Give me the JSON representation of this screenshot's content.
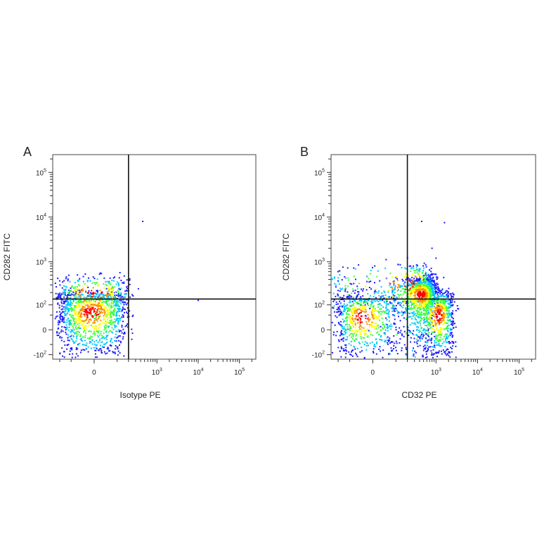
{
  "chart_data": [
    {
      "type": "scatter",
      "panel_label": "A",
      "xlabel": "Isotype PE",
      "ylabel": "CD282 FITC",
      "scale": "biexponential",
      "x_ticks": [
        {
          "value": 0,
          "label": "0"
        },
        {
          "value": 1000,
          "label": "10^3"
        },
        {
          "value": 10000,
          "label": "10^4"
        },
        {
          "value": 100000,
          "label": "10^5"
        }
      ],
      "y_ticks": [
        {
          "value": -100,
          "label": "-10^2"
        },
        {
          "value": 0,
          "label": "0"
        },
        {
          "value": 100,
          "label": "10^2"
        },
        {
          "value": 1000,
          "label": "10^3"
        },
        {
          "value": 10000,
          "label": "10^4"
        },
        {
          "value": 100000,
          "label": "10^5"
        }
      ],
      "xlim": [
        -300,
        250000
      ],
      "ylim": [
        -130,
        250000
      ],
      "quadrant_gate": {
        "x": 200,
        "y": 140
      },
      "populations": [
        {
          "x_center": -10,
          "y_center": 60,
          "x_spread": 90,
          "y_spread": 80,
          "n": 1100
        },
        {
          "x_center": 0,
          "y_center": 180,
          "x_spread": 110,
          "y_spread": 150,
          "n": 350
        }
      ],
      "outliers": [
        {
          "x": 450,
          "y": 8000
        },
        {
          "x": 10000,
          "y": 130
        }
      ],
      "density_colors": [
        "#1a1aff",
        "#00c8ff",
        "#3cff3c",
        "#ffff00",
        "#ff8c00",
        "#ff0000"
      ]
    },
    {
      "type": "scatter",
      "panel_label": "B",
      "xlabel": "CD32 PE",
      "ylabel": "CD282 FITC",
      "scale": "biexponential",
      "x_ticks": [
        {
          "value": 0,
          "label": "0"
        },
        {
          "value": 1000,
          "label": "10^3"
        },
        {
          "value": 10000,
          "label": "10^4"
        },
        {
          "value": 100000,
          "label": "10^5"
        }
      ],
      "y_ticks": [
        {
          "value": -100,
          "label": "-10^2"
        },
        {
          "value": 0,
          "label": "0"
        },
        {
          "value": 100,
          "label": "10^2"
        },
        {
          "value": 1000,
          "label": "10^3"
        },
        {
          "value": 10000,
          "label": "10^4"
        },
        {
          "value": 100000,
          "label": "10^5"
        }
      ],
      "xlim": [
        -300,
        250000
      ],
      "ylim": [
        -130,
        250000
      ],
      "quadrant_gate": {
        "x": 200,
        "y": 140
      },
      "populations": [
        {
          "x_center": -40,
          "y_center": 40,
          "x_spread": 80,
          "y_spread": 70,
          "n": 650
        },
        {
          "x_center": 450,
          "y_center": 180,
          "x_spread": 300,
          "y_spread": 120,
          "n": 1100
        },
        {
          "x_center": 1200,
          "y_center": 50,
          "x_spread": 700,
          "y_spread": 80,
          "n": 750
        },
        {
          "x_center": 250,
          "y_center": 300,
          "x_spread": 350,
          "y_spread": 300,
          "n": 300
        }
      ],
      "outliers": [
        {
          "x": 450,
          "y": 8000
        },
        {
          "x": 1600,
          "y": 7500
        },
        {
          "x": 800,
          "y": 2000
        },
        {
          "x": 1000,
          "y": 1200
        }
      ],
      "density_colors": [
        "#1a1aff",
        "#00c8ff",
        "#3cff3c",
        "#ffff00",
        "#ff8c00",
        "#ff0000"
      ]
    }
  ]
}
